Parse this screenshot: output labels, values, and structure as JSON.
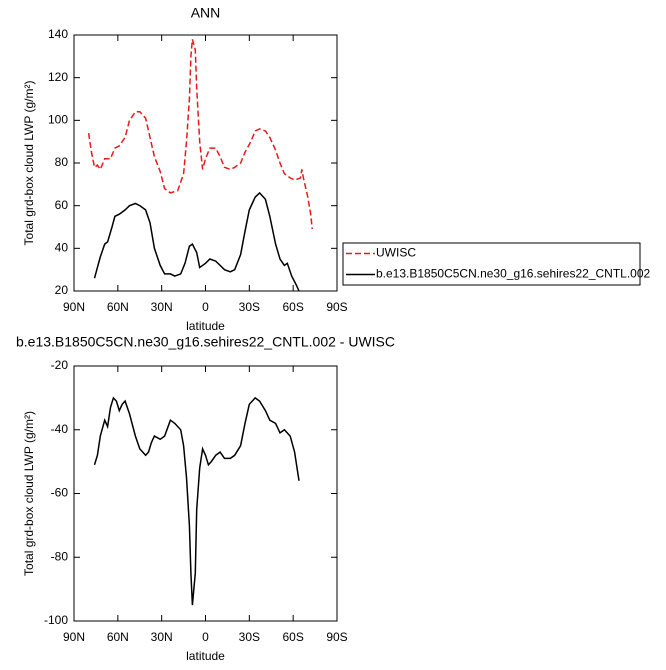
{
  "chart_data": [
    {
      "type": "line",
      "title": "ANN",
      "xlabel": "latitude",
      "ylabel": "Total grd-box cloud LWP (g/m²)",
      "xlim": [
        90,
        -90
      ],
      "ylim": [
        20,
        140
      ],
      "xticks": [
        {
          "value": 90,
          "label": "90N"
        },
        {
          "value": 60,
          "label": "60N"
        },
        {
          "value": 30,
          "label": "30N"
        },
        0,
        {
          "value": -30,
          "label": "30S"
        },
        {
          "value": -60,
          "label": "60S"
        },
        {
          "value": -90,
          "label": "90S"
        }
      ],
      "yticks": [
        20,
        40,
        60,
        80,
        100,
        120,
        140
      ],
      "legend": "right",
      "series": [
        {
          "name": "UWISC",
          "color": "#e41a1c",
          "dash": true,
          "x": [
            80,
            78,
            76,
            74,
            72,
            69,
            65,
            62,
            59,
            55,
            52,
            48,
            45,
            41,
            38,
            35,
            31,
            28,
            24,
            19,
            15,
            13,
            11,
            10,
            9,
            7,
            6,
            4,
            2,
            0,
            -3,
            -7,
            -10,
            -13,
            -17,
            -20,
            -24,
            -27,
            -31,
            -34,
            -37,
            -41,
            -44,
            -48,
            -51,
            -54,
            -58,
            -61,
            -65,
            -66,
            -67,
            -70,
            -72,
            -73
          ],
          "values": [
            94,
            85,
            78,
            79,
            77,
            82,
            82,
            87,
            88,
            92,
            100,
            104,
            104,
            101,
            92,
            83,
            76,
            68,
            66,
            67,
            75,
            90,
            110,
            130,
            138,
            133,
            115,
            90,
            77,
            82,
            87,
            87,
            83,
            78,
            77,
            78,
            80,
            85,
            90,
            95,
            96,
            95,
            92,
            86,
            80,
            75,
            73,
            72,
            73,
            77,
            73,
            64,
            56,
            49
          ]
        },
        {
          "name": "b.e13.B1850C5CN.ne30_g16.sehires22_CNTL.002",
          "color": "#000000",
          "dash": false,
          "x": [
            76,
            72,
            69,
            67,
            64,
            62,
            59,
            55,
            52,
            48,
            45,
            41,
            38,
            35,
            31,
            28,
            24,
            21,
            17,
            14,
            11,
            9,
            6,
            4,
            0,
            -3,
            -7,
            -10,
            -13,
            -17,
            -20,
            -24,
            -27,
            -30,
            -34,
            -37,
            -41,
            -44,
            -48,
            -51,
            -54,
            -56,
            -59,
            -62,
            -64
          ],
          "values": [
            26,
            36,
            42,
            43,
            50,
            55,
            56,
            58,
            60,
            61,
            60,
            58,
            52,
            40,
            32,
            28,
            28,
            27,
            28,
            33,
            41,
            42,
            38,
            31,
            33,
            35,
            34,
            32,
            30,
            29,
            30,
            37,
            48,
            58,
            64,
            66,
            63,
            55,
            42,
            35,
            32,
            33,
            27,
            23,
            20
          ]
        }
      ]
    },
    {
      "type": "line",
      "title": "b.e13.B1850C5CN.ne30_g16.sehires22_CNTL.002 - UWISC",
      "xlabel": "latitude",
      "ylabel": "Total grd-box cloud LWP (g/m²)",
      "xlim": [
        90,
        -90
      ],
      "ylim": [
        -100,
        -20
      ],
      "xticks": [
        {
          "value": 90,
          "label": "90N"
        },
        {
          "value": 60,
          "label": "60N"
        },
        {
          "value": 30,
          "label": "30N"
        },
        0,
        {
          "value": -30,
          "label": "30S"
        },
        {
          "value": -60,
          "label": "60S"
        },
        {
          "value": -90,
          "label": "90S"
        }
      ],
      "yticks": [
        -100,
        -80,
        -60,
        -40,
        -20
      ],
      "series": [
        {
          "color": "#000000",
          "dash": false,
          "x": [
            76,
            74,
            72,
            69,
            67,
            65,
            63,
            61,
            59,
            57,
            55,
            52,
            48,
            45,
            41,
            39,
            37,
            35,
            31,
            28,
            24,
            21,
            17,
            15,
            13,
            11,
            10,
            9,
            7,
            6,
            4,
            2,
            0,
            -2,
            -4,
            -7,
            -10,
            -13,
            -17,
            -20,
            -24,
            -27,
            -30,
            -34,
            -37,
            -41,
            -44,
            -48,
            -51,
            -54,
            -58,
            -61,
            -64
          ],
          "values": [
            -51,
            -48,
            -42,
            -37,
            -39,
            -33,
            -30,
            -31,
            -34,
            -32,
            -31,
            -35,
            -42,
            -46,
            -48,
            -47,
            -44,
            -42,
            -43,
            -42,
            -37,
            -38,
            -40,
            -45,
            -55,
            -70,
            -85,
            -95,
            -85,
            -65,
            -52,
            -46,
            -48,
            -51,
            -50,
            -48,
            -47,
            -49,
            -49,
            -48,
            -45,
            -38,
            -32,
            -30,
            -31,
            -34,
            -37,
            -38,
            -41,
            -40,
            -42,
            -47,
            -56
          ]
        }
      ]
    }
  ]
}
